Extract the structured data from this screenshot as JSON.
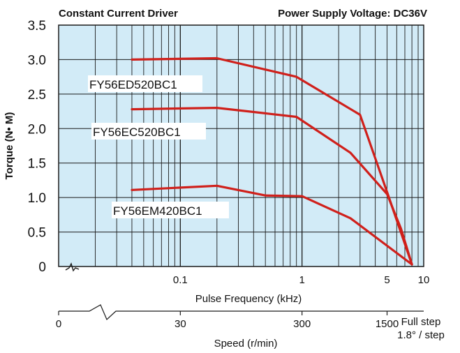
{
  "chart_data": {
    "type": "line",
    "header_left": "Constant Current Driver",
    "header_right": "Power Supply Voltage: DC36V",
    "ylabel": "Torque (N• M)",
    "xlabel": "Pulse Frequency (kHz)",
    "ylim": [
      0,
      3.5
    ],
    "yticks": [
      "0",
      "0.5",
      "1.0",
      "1.5",
      "2.0",
      "2.5",
      "3.0",
      "3.5"
    ],
    "xlim_khz": [
      0.01,
      10
    ],
    "xticks": [
      {
        "value": 0.1,
        "label": "0.1"
      },
      {
        "value": 1,
        "label": "1"
      },
      {
        "value": 5,
        "label": "5"
      },
      {
        "value": 10,
        "label": "10"
      }
    ],
    "speed_axis": {
      "label": "Speed (r/min)",
      "ticks": [
        {
          "khz": 0.01,
          "label": "0"
        },
        {
          "khz": 0.1,
          "label": "30"
        },
        {
          "khz": 1,
          "label": "300"
        },
        {
          "khz": 5,
          "label": "1500"
        }
      ],
      "note_line1": "Full step",
      "note_line2": "1.8° / step"
    },
    "series": [
      {
        "name": "FY56ED520BC1",
        "points": [
          [
            0.04,
            3.0
          ],
          [
            0.2,
            3.02
          ],
          [
            0.9,
            2.75
          ],
          [
            3.0,
            2.2
          ],
          [
            5.0,
            1.08
          ],
          [
            6.2,
            0.6
          ],
          [
            8.0,
            0.03
          ]
        ]
      },
      {
        "name": "FY56EC520BC1",
        "points": [
          [
            0.04,
            2.28
          ],
          [
            0.2,
            2.3
          ],
          [
            0.9,
            2.17
          ],
          [
            2.5,
            1.65
          ],
          [
            5.0,
            1.05
          ],
          [
            6.5,
            0.55
          ],
          [
            8.0,
            0.03
          ]
        ]
      },
      {
        "name": "FY56EM420BC1",
        "points": [
          [
            0.04,
            1.11
          ],
          [
            0.2,
            1.17
          ],
          [
            0.5,
            1.03
          ],
          [
            1.0,
            1.02
          ],
          [
            2.5,
            0.7
          ],
          [
            8.0,
            0.03
          ]
        ]
      }
    ]
  },
  "colors": {
    "plot_bg": "#d2ebf7",
    "grid": "#1a1a1a",
    "curve": "#d0201b"
  }
}
